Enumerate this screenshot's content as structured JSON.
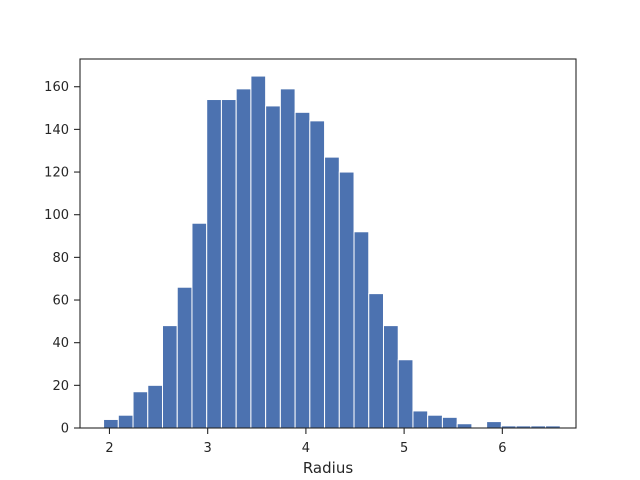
{
  "chart_data": {
    "type": "histogram",
    "title": "",
    "xlabel": "Radius",
    "ylabel": "",
    "xlim": [
      1.7,
      6.75
    ],
    "ylim": [
      0,
      173
    ],
    "grid": false,
    "bar_color": "#4c72b0",
    "bin_start": 1.94,
    "bin_width": 0.15,
    "counts": [
      4,
      6,
      17,
      20,
      48,
      66,
      96,
      154,
      154,
      159,
      165,
      151,
      159,
      148,
      144,
      127,
      120,
      92,
      63,
      48,
      32,
      8,
      6,
      5,
      2,
      0,
      3,
      1,
      1,
      1,
      1
    ],
    "x_ticks": [
      2,
      3,
      4,
      5,
      6
    ],
    "x_tick_labels": [
      "2",
      "3",
      "4",
      "5",
      "6"
    ],
    "y_ticks": [
      0,
      20,
      40,
      60,
      80,
      100,
      120,
      140,
      160
    ],
    "y_tick_labels": [
      "0",
      "20",
      "40",
      "60",
      "80",
      "100",
      "120",
      "140",
      "160"
    ]
  }
}
